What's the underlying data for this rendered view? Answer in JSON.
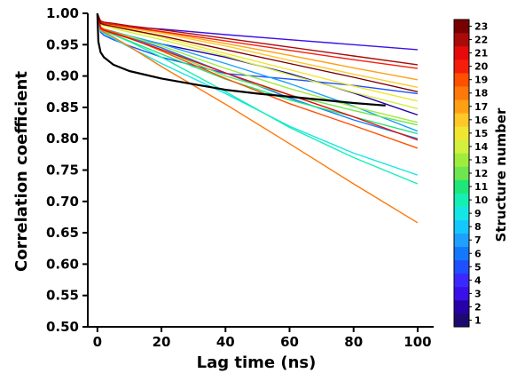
{
  "chart_data": {
    "type": "line",
    "xlabel": "Lag time (ns)",
    "ylabel": "Correlation coefficient",
    "xlim": [
      -3,
      105
    ],
    "ylim": [
      0.5,
      1.0
    ],
    "xticks": [
      "0",
      "20",
      "40",
      "60",
      "80",
      "100"
    ],
    "yticks": [
      "0.50",
      "0.55",
      "0.60",
      "0.65",
      "0.70",
      "0.75",
      "0.80",
      "0.85",
      "0.90",
      "0.95",
      "1.00"
    ],
    "grid": false,
    "colorbar": {
      "title": "Structure number",
      "labels": [
        "1",
        "2",
        "3",
        "4",
        "5",
        "6",
        "7",
        "8",
        "9",
        "10",
        "11",
        "12",
        "13",
        "14",
        "15",
        "16",
        "17",
        "18",
        "19",
        "20",
        "21",
        "22",
        "23"
      ],
      "colors": [
        "#1e0a6e",
        "#2800a8",
        "#3a10e8",
        "#3c28ff",
        "#1e50ff",
        "#1478ff",
        "#1ea0ff",
        "#14c8ff",
        "#14e6e6",
        "#14f0b4",
        "#1ee678",
        "#6ee650",
        "#a0ec3c",
        "#d2f03c",
        "#f0e632",
        "#ffc828",
        "#ffa014",
        "#ff780a",
        "#ff5000",
        "#f51e0a",
        "#e60a0a",
        "#aa0a0a",
        "#780000"
      ]
    },
    "series": [
      {
        "color": "#2800a8",
        "x": [
          0,
          1,
          2,
          5,
          10,
          20,
          40,
          60,
          80,
          100
        ],
        "y": [
          1.0,
          0.975,
          0.972,
          0.968,
          0.963,
          0.951,
          0.93,
          0.904,
          0.873,
          0.838
        ]
      },
      {
        "color": "#3a10e8",
        "x": [
          0,
          1,
          2,
          5,
          10,
          20,
          40,
          60,
          80,
          100
        ],
        "y": [
          1.0,
          0.985,
          0.983,
          0.982,
          0.978,
          0.975,
          0.966,
          0.958,
          0.95,
          0.942
        ]
      },
      {
        "color": "#1e50ff",
        "x": [
          0,
          1,
          2,
          5,
          10,
          20,
          40,
          60,
          80,
          100
        ],
        "y": [
          1.0,
          0.97,
          0.965,
          0.958,
          0.948,
          0.93,
          0.904,
          0.895,
          0.885,
          0.872
        ]
      },
      {
        "color": "#1478ff",
        "x": [
          0,
          1,
          2,
          5,
          10,
          20,
          40,
          60,
          80,
          100
        ],
        "y": [
          1.0,
          0.978,
          0.975,
          0.97,
          0.962,
          0.945,
          0.905,
          0.865,
          0.83,
          0.8
        ]
      },
      {
        "color": "#1ea0ff",
        "x": [
          0,
          1,
          2,
          5,
          10,
          20,
          40,
          60,
          80,
          100
        ],
        "y": [
          1.0,
          0.978,
          0.975,
          0.971,
          0.964,
          0.951,
          0.92,
          0.888,
          0.852,
          0.812
        ]
      },
      {
        "color": "#14e6e6",
        "x": [
          0,
          1,
          2,
          5,
          10,
          20,
          40,
          60,
          80,
          100
        ],
        "y": [
          1.0,
          0.972,
          0.968,
          0.96,
          0.946,
          0.92,
          0.872,
          0.82,
          0.777,
          0.742
        ]
      },
      {
        "color": "#14f0b4",
        "x": [
          0,
          1,
          2,
          5,
          10,
          20,
          40,
          60,
          80,
          100
        ],
        "y": [
          1.0,
          0.975,
          0.972,
          0.966,
          0.955,
          0.93,
          0.875,
          0.818,
          0.77,
          0.728
        ]
      },
      {
        "color": "#1ee678",
        "x": [
          0,
          1,
          2,
          5,
          10,
          20,
          40,
          60,
          80,
          100
        ],
        "y": [
          1.0,
          0.974,
          0.971,
          0.966,
          0.956,
          0.935,
          0.895,
          0.862,
          0.835,
          0.808
        ]
      },
      {
        "color": "#6ee650",
        "x": [
          0,
          1,
          2,
          5,
          10,
          20,
          40,
          60,
          80,
          100
        ],
        "y": [
          1.0,
          0.975,
          0.972,
          0.968,
          0.96,
          0.942,
          0.9,
          0.87,
          0.845,
          0.822
        ]
      },
      {
        "color": "#a0ec3c",
        "x": [
          0,
          1,
          2,
          5,
          10,
          20,
          40,
          60,
          80,
          100
        ],
        "y": [
          1.0,
          0.977,
          0.974,
          0.97,
          0.963,
          0.948,
          0.912,
          0.88,
          0.851,
          0.826
        ]
      },
      {
        "color": "#d2f03c",
        "x": [
          0,
          1,
          2,
          5,
          10,
          20,
          40,
          60,
          80,
          100
        ],
        "y": [
          1.0,
          0.982,
          0.98,
          0.976,
          0.97,
          0.958,
          0.932,
          0.902,
          0.874,
          0.848
        ]
      },
      {
        "color": "#f0e632",
        "x": [
          0,
          1,
          2,
          5,
          10,
          20,
          40,
          60,
          80,
          100
        ],
        "y": [
          1.0,
          0.983,
          0.981,
          0.978,
          0.973,
          0.962,
          0.936,
          0.91,
          0.884,
          0.86
        ]
      },
      {
        "color": "#ffc828",
        "x": [
          0,
          1,
          2,
          5,
          10,
          20,
          40,
          60,
          80,
          100
        ],
        "y": [
          1.0,
          0.985,
          0.983,
          0.98,
          0.976,
          0.968,
          0.948,
          0.925,
          0.903,
          0.882
        ]
      },
      {
        "color": "#ffa014",
        "x": [
          0,
          1,
          2,
          5,
          10,
          20,
          40,
          60,
          80,
          100
        ],
        "y": [
          1.0,
          0.986,
          0.984,
          0.982,
          0.978,
          0.97,
          0.952,
          0.933,
          0.913,
          0.894
        ]
      },
      {
        "color": "#ff780a",
        "x": [
          0,
          1,
          2,
          5,
          10,
          20,
          40,
          60,
          80,
          100
        ],
        "y": [
          1.0,
          0.974,
          0.97,
          0.962,
          0.947,
          0.915,
          0.855,
          0.792,
          0.728,
          0.666
        ]
      },
      {
        "color": "#ff5000",
        "x": [
          0,
          1,
          2,
          5,
          10,
          20,
          40,
          60,
          80,
          100
        ],
        "y": [
          1.0,
          0.978,
          0.975,
          0.97,
          0.961,
          0.94,
          0.896,
          0.856,
          0.821,
          0.785
        ]
      },
      {
        "color": "#f51e0a",
        "x": [
          0,
          1,
          2,
          5,
          10,
          20,
          40,
          60,
          80,
          100
        ],
        "y": [
          1.0,
          0.986,
          0.984,
          0.982,
          0.978,
          0.971,
          0.956,
          0.941,
          0.926,
          0.912
        ]
      },
      {
        "color": "#e60a0a",
        "x": [
          0,
          1,
          2,
          5,
          10,
          20,
          40,
          60,
          80,
          100
        ],
        "y": [
          1.0,
          0.976,
          0.973,
          0.968,
          0.96,
          0.942,
          0.905,
          0.87,
          0.835,
          0.798
        ]
      },
      {
        "color": "#aa0a0a",
        "x": [
          0,
          1,
          2,
          5,
          10,
          20,
          40,
          60,
          80,
          100
        ],
        "y": [
          1.0,
          0.988,
          0.986,
          0.984,
          0.98,
          0.974,
          0.96,
          0.946,
          0.932,
          0.918
        ]
      },
      {
        "color": "#780000",
        "x": [
          0,
          1,
          2,
          5,
          10,
          20,
          40,
          60,
          80,
          100
        ],
        "y": [
          1.0,
          0.984,
          0.982,
          0.979,
          0.974,
          0.964,
          0.942,
          0.92,
          0.898,
          0.875
        ]
      },
      {
        "color": "#000000",
        "width": 2.2,
        "x": [
          0,
          0.3,
          1,
          2,
          5,
          10,
          20,
          30,
          40,
          50,
          60,
          70,
          80,
          90
        ],
        "y": [
          1.0,
          0.955,
          0.938,
          0.93,
          0.918,
          0.908,
          0.896,
          0.887,
          0.878,
          0.872,
          0.867,
          0.862,
          0.857,
          0.853
        ]
      }
    ]
  }
}
